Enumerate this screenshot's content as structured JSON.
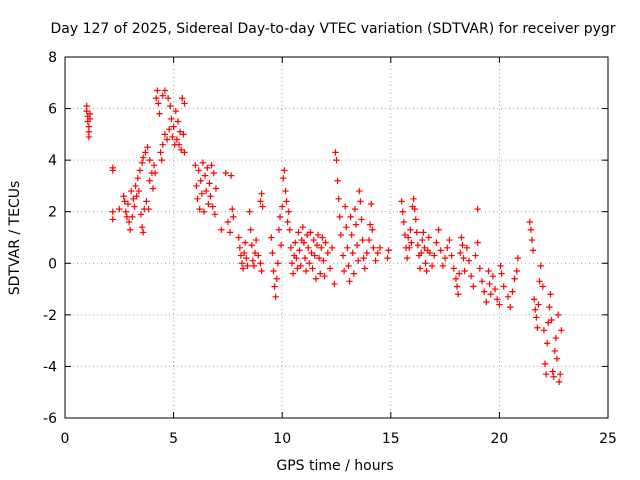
{
  "chart_data": {
    "type": "scatter",
    "title": "Day 127 of 2025, Sidereal Day-to-day VTEC variation (SDTVAR) for receiver pygr",
    "xlabel": "GPS time / hours",
    "ylabel": "SDTVAR / TECUs",
    "xlim": [
      0,
      25
    ],
    "ylim": [
      -6,
      8
    ],
    "xticks": [
      0,
      5,
      10,
      15,
      20,
      25
    ],
    "yticks": [
      -6,
      -4,
      -2,
      0,
      2,
      4,
      6,
      8
    ],
    "grid": true,
    "marker": "+",
    "color": "#ff0000",
    "series": [
      {
        "name": "SDTVAR",
        "points": [
          [
            1.0,
            6.1
          ],
          [
            1.0,
            5.9
          ],
          [
            1.05,
            5.7
          ],
          [
            1.05,
            5.5
          ],
          [
            1.1,
            5.3
          ],
          [
            1.1,
            5.1
          ],
          [
            1.1,
            4.9
          ],
          [
            1.15,
            5.8
          ],
          [
            1.15,
            5.6
          ],
          [
            2.2,
            3.7
          ],
          [
            2.2,
            3.6
          ],
          [
            2.2,
            2.0
          ],
          [
            2.2,
            1.7
          ],
          [
            2.5,
            2.1
          ],
          [
            2.7,
            2.6
          ],
          [
            2.75,
            2.4
          ],
          [
            2.8,
            2.0
          ],
          [
            2.85,
            1.8
          ],
          [
            2.9,
            2.3
          ],
          [
            2.95,
            1.6
          ],
          [
            3.0,
            1.3
          ],
          [
            3.05,
            2.8
          ],
          [
            3.1,
            1.8
          ],
          [
            3.15,
            2.5
          ],
          [
            3.2,
            2.2
          ],
          [
            3.25,
            3.0
          ],
          [
            3.3,
            2.6
          ],
          [
            3.35,
            3.3
          ],
          [
            3.4,
            2.8
          ],
          [
            3.45,
            3.6
          ],
          [
            3.5,
            1.9
          ],
          [
            3.55,
            1.4
          ],
          [
            3.55,
            3.9
          ],
          [
            3.6,
            1.2
          ],
          [
            3.6,
            4.1
          ],
          [
            3.65,
            2.1
          ],
          [
            3.7,
            4.3
          ],
          [
            3.75,
            2.4
          ],
          [
            3.8,
            4.5
          ],
          [
            3.85,
            2.1
          ],
          [
            3.9,
            4.0
          ],
          [
            3.9,
            3.2
          ],
          [
            4.0,
            3.5
          ],
          [
            4.05,
            2.9
          ],
          [
            4.1,
            3.8
          ],
          [
            4.15,
            3.5
          ],
          [
            4.2,
            6.4
          ],
          [
            4.25,
            6.7
          ],
          [
            4.3,
            6.2
          ],
          [
            4.35,
            5.8
          ],
          [
            4.4,
            4.3
          ],
          [
            4.45,
            4.0
          ],
          [
            4.5,
            4.6
          ],
          [
            4.5,
            6.5
          ],
          [
            4.6,
            5.0
          ],
          [
            4.6,
            6.7
          ],
          [
            4.7,
            4.8
          ],
          [
            4.75,
            6.4
          ],
          [
            4.8,
            5.2
          ],
          [
            4.85,
            6.1
          ],
          [
            4.9,
            5.6
          ],
          [
            4.95,
            4.9
          ],
          [
            5.0,
            5.3
          ],
          [
            5.05,
            4.6
          ],
          [
            5.1,
            5.9
          ],
          [
            5.15,
            4.8
          ],
          [
            5.2,
            5.5
          ],
          [
            5.25,
            4.6
          ],
          [
            5.3,
            5.1
          ],
          [
            5.35,
            4.4
          ],
          [
            5.4,
            6.4
          ],
          [
            5.45,
            5.0
          ],
          [
            5.5,
            4.3
          ],
          [
            5.5,
            6.2
          ],
          [
            6.0,
            3.8
          ],
          [
            6.05,
            3.0
          ],
          [
            6.1,
            2.5
          ],
          [
            6.15,
            3.6
          ],
          [
            6.2,
            2.1
          ],
          [
            6.25,
            3.2
          ],
          [
            6.3,
            2.7
          ],
          [
            6.35,
            3.9
          ],
          [
            6.4,
            2.0
          ],
          [
            6.45,
            3.4
          ],
          [
            6.5,
            2.8
          ],
          [
            6.55,
            3.7
          ],
          [
            6.6,
            2.3
          ],
          [
            6.65,
            3.1
          ],
          [
            6.7,
            2.6
          ],
          [
            6.75,
            3.8
          ],
          [
            6.8,
            2.2
          ],
          [
            6.85,
            3.5
          ],
          [
            6.9,
            1.9
          ],
          [
            6.95,
            2.9
          ],
          [
            7.2,
            1.3
          ],
          [
            7.4,
            3.5
          ],
          [
            7.5,
            1.6
          ],
          [
            7.6,
            1.2
          ],
          [
            7.65,
            3.4
          ],
          [
            7.7,
            2.1
          ],
          [
            7.75,
            1.8
          ],
          [
            8.0,
            1.0
          ],
          [
            8.05,
            0.6
          ],
          [
            8.1,
            0.3
          ],
          [
            8.15,
            0.0
          ],
          [
            8.2,
            -0.2
          ],
          [
            8.25,
            0.4
          ],
          [
            8.3,
            0.8
          ],
          [
            8.35,
            0.2
          ],
          [
            8.4,
            -0.1
          ],
          [
            8.5,
            2.0
          ],
          [
            8.55,
            1.3
          ],
          [
            8.6,
            0.7
          ],
          [
            8.65,
            0.1
          ],
          [
            8.7,
            -0.1
          ],
          [
            8.75,
            0.4
          ],
          [
            8.8,
            0.9
          ],
          [
            8.9,
            0.3
          ],
          [
            9.0,
            0.0
          ],
          [
            9.05,
            -0.3
          ],
          [
            9.0,
            2.4
          ],
          [
            9.05,
            2.7
          ],
          [
            9.1,
            2.2
          ],
          [
            9.5,
            1.0
          ],
          [
            9.55,
            0.4
          ],
          [
            9.6,
            -0.3
          ],
          [
            9.65,
            -0.9
          ],
          [
            9.7,
            -1.3
          ],
          [
            9.75,
            -0.6
          ],
          [
            9.8,
            0.0
          ],
          [
            9.85,
            1.3
          ],
          [
            9.9,
            1.8
          ],
          [
            9.95,
            0.7
          ],
          [
            10.0,
            2.2
          ],
          [
            10.05,
            3.3
          ],
          [
            10.1,
            3.6
          ],
          [
            10.15,
            2.8
          ],
          [
            10.2,
            2.4
          ],
          [
            10.25,
            1.6
          ],
          [
            10.3,
            2.0
          ],
          [
            10.35,
            1.3
          ],
          [
            10.4,
            0.6
          ],
          [
            10.45,
            0.0
          ],
          [
            10.5,
            -0.4
          ],
          [
            10.55,
            0.3
          ],
          [
            10.6,
            0.8
          ],
          [
            10.65,
            0.2
          ],
          [
            10.7,
            -0.2
          ],
          [
            10.75,
            1.2
          ],
          [
            10.8,
            0.5
          ],
          [
            10.85,
            -0.1
          ],
          [
            10.9,
            0.9
          ],
          [
            10.95,
            1.4
          ],
          [
            11.0,
            0.8
          ],
          [
            11.05,
            0.2
          ],
          [
            11.1,
            -0.3
          ],
          [
            11.15,
            1.1
          ],
          [
            11.2,
            0.6
          ],
          [
            11.25,
            0.0
          ],
          [
            11.3,
            1.2
          ],
          [
            11.35,
            0.4
          ],
          [
            11.4,
            -0.2
          ],
          [
            11.45,
            0.9
          ],
          [
            11.5,
            0.3
          ],
          [
            11.55,
            -0.6
          ],
          [
            11.6,
            0.7
          ],
          [
            11.65,
            1.1
          ],
          [
            11.7,
            0.2
          ],
          [
            11.75,
            -0.4
          ],
          [
            11.8,
            0.6
          ],
          [
            11.85,
            1.0
          ],
          [
            11.9,
            0.1
          ],
          [
            11.95,
            -0.5
          ],
          [
            12.0,
            0.8
          ],
          [
            12.1,
            0.4
          ],
          [
            12.2,
            -0.2
          ],
          [
            12.3,
            0.6
          ],
          [
            12.4,
            -0.8
          ],
          [
            12.45,
            4.3
          ],
          [
            12.5,
            4.0
          ],
          [
            12.55,
            3.2
          ],
          [
            12.6,
            2.5
          ],
          [
            12.65,
            1.8
          ],
          [
            12.7,
            1.1
          ],
          [
            12.8,
            0.3
          ],
          [
            12.85,
            -0.3
          ],
          [
            12.9,
            2.2
          ],
          [
            12.95,
            1.4
          ],
          [
            13.0,
            0.6
          ],
          [
            13.05,
            -0.1
          ],
          [
            13.1,
            -0.7
          ],
          [
            13.15,
            1.8
          ],
          [
            13.2,
            1.1
          ],
          [
            13.25,
            0.4
          ],
          [
            13.3,
            -0.4
          ],
          [
            13.35,
            2.1
          ],
          [
            13.4,
            1.5
          ],
          [
            13.45,
            0.7
          ],
          [
            13.5,
            0.1
          ],
          [
            13.55,
            2.8
          ],
          [
            13.6,
            2.4
          ],
          [
            13.65,
            1.7
          ],
          [
            13.7,
            0.9
          ],
          [
            13.75,
            0.2
          ],
          [
            13.8,
            -0.2
          ],
          [
            13.9,
            0.4
          ],
          [
            14.0,
            0.9
          ],
          [
            14.05,
            1.5
          ],
          [
            14.1,
            2.3
          ],
          [
            14.15,
            1.3
          ],
          [
            14.2,
            0.6
          ],
          [
            14.3,
            0.1
          ],
          [
            14.4,
            0.4
          ],
          [
            14.5,
            0.6
          ],
          [
            14.85,
            0.2
          ],
          [
            14.9,
            0.5
          ],
          [
            15.5,
            2.4
          ],
          [
            15.55,
            2.0
          ],
          [
            15.6,
            1.6
          ],
          [
            15.65,
            1.1
          ],
          [
            15.7,
            0.6
          ],
          [
            15.75,
            0.2
          ],
          [
            15.8,
            1.0
          ],
          [
            15.85,
            0.6
          ],
          [
            15.9,
            1.3
          ],
          [
            15.95,
            0.8
          ],
          [
            16.0,
            2.2
          ],
          [
            16.05,
            2.5
          ],
          [
            16.1,
            2.1
          ],
          [
            16.15,
            1.7
          ],
          [
            16.2,
            1.2
          ],
          [
            16.25,
            0.7
          ],
          [
            16.3,
            0.3
          ],
          [
            16.35,
            -0.2
          ],
          [
            16.4,
            0.4
          ],
          [
            16.45,
            0.9
          ],
          [
            16.5,
            1.2
          ],
          [
            16.55,
            0.6
          ],
          [
            16.6,
            0.0
          ],
          [
            16.65,
            -0.3
          ],
          [
            16.7,
            0.5
          ],
          [
            16.75,
            1.0
          ],
          [
            16.8,
            0.4
          ],
          [
            16.9,
            -0.1
          ],
          [
            17.0,
            0.3
          ],
          [
            17.1,
            0.8
          ],
          [
            17.2,
            1.3
          ],
          [
            17.3,
            0.5
          ],
          [
            17.4,
            -0.1
          ],
          [
            17.5,
            0.2
          ],
          [
            17.6,
            0.6
          ],
          [
            17.7,
            0.9
          ],
          [
            17.8,
            0.3
          ],
          [
            17.9,
            -0.2
          ],
          [
            18.0,
            -0.6
          ],
          [
            18.05,
            -0.9
          ],
          [
            18.1,
            -1.2
          ],
          [
            18.15,
            -0.4
          ],
          [
            18.2,
            0.4
          ],
          [
            18.25,
            1.0
          ],
          [
            18.3,
            0.7
          ],
          [
            18.35,
            0.2
          ],
          [
            18.4,
            -0.3
          ],
          [
            18.5,
            0.6
          ],
          [
            18.6,
            0.1
          ],
          [
            18.7,
            -0.5
          ],
          [
            18.8,
            -0.9
          ],
          [
            18.9,
            0.3
          ],
          [
            19.0,
            2.1
          ],
          [
            19.0,
            0.8
          ],
          [
            19.1,
            -0.2
          ],
          [
            19.2,
            -0.7
          ],
          [
            19.3,
            -1.1
          ],
          [
            19.4,
            -1.5
          ],
          [
            19.5,
            -0.3
          ],
          [
            19.55,
            -0.8
          ],
          [
            19.6,
            -1.2
          ],
          [
            19.7,
            -0.5
          ],
          [
            19.8,
            -1.0
          ],
          [
            19.9,
            -1.4
          ],
          [
            20.0,
            -1.6
          ],
          [
            20.05,
            -0.1
          ],
          [
            20.1,
            -0.4
          ],
          [
            20.2,
            -0.9
          ],
          [
            20.4,
            -1.3
          ],
          [
            20.5,
            -1.7
          ],
          [
            20.6,
            -1.1
          ],
          [
            20.7,
            -0.6
          ],
          [
            20.8,
            -0.3
          ],
          [
            20.85,
            0.2
          ],
          [
            21.4,
            1.6
          ],
          [
            21.45,
            1.3
          ],
          [
            21.5,
            0.9
          ],
          [
            21.55,
            0.5
          ],
          [
            21.6,
            -1.4
          ],
          [
            21.65,
            -1.8
          ],
          [
            21.7,
            -2.1
          ],
          [
            21.75,
            -2.5
          ],
          [
            21.8,
            -1.6
          ],
          [
            21.85,
            -0.7
          ],
          [
            21.9,
            -0.1
          ],
          [
            22.0,
            -0.9
          ],
          [
            22.05,
            -2.6
          ],
          [
            22.1,
            -3.9
          ],
          [
            22.15,
            -4.3
          ],
          [
            22.2,
            -3.1
          ],
          [
            22.25,
            -2.3
          ],
          [
            22.3,
            -1.7
          ],
          [
            22.35,
            -1.2
          ],
          [
            22.4,
            -2.2
          ],
          [
            22.45,
            -4.2
          ],
          [
            22.5,
            -4.4
          ],
          [
            22.55,
            -3.4
          ],
          [
            22.6,
            -2.9
          ],
          [
            22.65,
            -3.7
          ],
          [
            22.7,
            -2.0
          ],
          [
            22.75,
            -4.6
          ],
          [
            22.8,
            -4.3
          ],
          [
            22.85,
            -2.6
          ]
        ]
      }
    ]
  }
}
